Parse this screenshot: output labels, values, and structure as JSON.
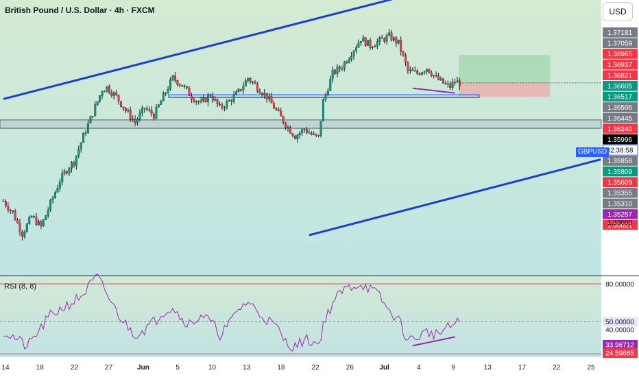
{
  "header": {
    "title": "British Pound / U.S. Dollar · 4h · FXCM",
    "currency_button": "USD",
    "symbol_tag": "GBPUSD"
  },
  "rsi": {
    "label": "RSI (8, 8)"
  },
  "colors": {
    "green_tag": "#089981",
    "red_tag": "#f23645",
    "gray_tag": "#787b86",
    "black_tag": "#000000",
    "purple_tag": "#9c27b0",
    "channel_line": "#1e3fc8",
    "candle_up": "#089981",
    "candle_down": "#f23645",
    "rsi_line": "#9c27b0",
    "divergence": "#9c27b0"
  },
  "chart_data": [
    {
      "type": "candlestick",
      "title": "British Pound / U.S. Dollar · 4h · FXCM",
      "x_tick_labels": [
        "14",
        "18",
        "22",
        "27",
        "Jun",
        "5",
        "10",
        "13",
        "18",
        "22",
        "26",
        "Jul",
        "4",
        "9",
        "13",
        "17",
        "22",
        "25"
      ],
      "y_tick_labels": [
        "1.33000"
      ],
      "ylim": [
        1.3185,
        1.3778
      ],
      "price_tags": [
        {
          "value": "1.37181",
          "style": "gray"
        },
        {
          "value": "1.37059",
          "style": "gray"
        },
        {
          "value": "1.36965",
          "style": "red"
        },
        {
          "value": "1.36937",
          "style": "red"
        },
        {
          "value": "1.36821",
          "style": "red"
        },
        {
          "value": "1.36605",
          "style": "green"
        },
        {
          "value": "1.36517",
          "style": "green"
        },
        {
          "value": "1.36506",
          "style": "gray"
        },
        {
          "value": "1.36445",
          "style": "gray"
        },
        {
          "value": "1.36340",
          "style": "red"
        },
        {
          "value": "1.35996",
          "style": "black"
        },
        {
          "value": "02:38:58",
          "style": "countdown"
        },
        {
          "value": "1.35858",
          "style": "gray"
        },
        {
          "value": "1.35809",
          "style": "green"
        },
        {
          "value": "1.35609",
          "style": "red"
        },
        {
          "value": "1.35355",
          "style": "gray"
        },
        {
          "value": "1.35310",
          "style": "gray"
        },
        {
          "value": "1.35257",
          "style": "purple"
        },
        {
          "value": "1.35021",
          "style": "red"
        }
      ],
      "last_price": 1.35996,
      "price_waypoints": [
        [
          0,
          1.3345
        ],
        [
          4,
          1.332
        ],
        [
          8,
          1.3275
        ],
        [
          12,
          1.3312
        ],
        [
          16,
          1.329
        ],
        [
          20,
          1.334
        ],
        [
          24,
          1.339
        ],
        [
          28,
          1.342
        ],
        [
          30,
          1.343
        ],
        [
          34,
          1.3485
        ],
        [
          38,
          1.3535
        ],
        [
          42,
          1.3585
        ],
        [
          44,
          1.359
        ],
        [
          48,
          1.357
        ],
        [
          52,
          1.354
        ],
        [
          56,
          1.3515
        ],
        [
          60,
          1.3545
        ],
        [
          64,
          1.353
        ],
        [
          68,
          1.357
        ],
        [
          72,
          1.361
        ],
        [
          76,
          1.3595
        ],
        [
          80,
          1.357
        ],
        [
          84,
          1.3555
        ],
        [
          88,
          1.3575
        ],
        [
          92,
          1.3545
        ],
        [
          96,
          1.356
        ],
        [
          100,
          1.358
        ],
        [
          104,
          1.361
        ],
        [
          108,
          1.359
        ],
        [
          112,
          1.357
        ],
        [
          116,
          1.354
        ],
        [
          120,
          1.351
        ],
        [
          124,
          1.3485
        ],
        [
          128,
          1.35
        ],
        [
          132,
          1.3485
        ],
        [
          134,
          1.3482
        ],
        [
          136,
          1.356
        ],
        [
          140,
          1.362
        ],
        [
          144,
          1.3635
        ],
        [
          148,
          1.3665
        ],
        [
          152,
          1.3695
        ],
        [
          156,
          1.368
        ],
        [
          160,
          1.369
        ],
        [
          164,
          1.37
        ],
        [
          168,
          1.3685
        ],
        [
          172,
          1.3625
        ],
        [
          176,
          1.362
        ],
        [
          180,
          1.3632
        ],
        [
          184,
          1.361
        ],
        [
          188,
          1.3595
        ],
        [
          190,
          1.3592
        ],
        [
          192,
          1.3602
        ],
        [
          194,
          1.36
        ]
      ],
      "channel": {
        "upper": [
          [
            0,
            1.3565
          ],
          [
            254,
            1.3895
          ]
        ],
        "lower": [
          [
            130,
            1.3272
          ],
          [
            254,
            1.3435
          ]
        ]
      },
      "zones": {
        "support_box": [
          1.3568,
          1.3574
        ],
        "lower_band": [
          1.3502,
          1.352
        ],
        "target_box": [
          1.36,
          1.366
        ],
        "stop_box": [
          1.357,
          1.36
        ]
      },
      "divergence_price": [
        [
          174,
          1.3588
        ],
        [
          192,
          1.3578
        ]
      ]
    },
    {
      "type": "line",
      "title": "RSI (8, 8)",
      "ylim": [
        22.0,
        86.0
      ],
      "levels": [
        80,
        50,
        24.59665
      ],
      "y_tick_labels": [
        "80.00000",
        "50.00000",
        "40.00000"
      ],
      "value_tags": [
        "50.00000",
        "33.96712",
        "24.59665"
      ],
      "rsi_waypoints": [
        [
          0,
          42
        ],
        [
          6,
          36
        ],
        [
          10,
          30
        ],
        [
          14,
          40
        ],
        [
          20,
          55
        ],
        [
          26,
          62
        ],
        [
          30,
          66
        ],
        [
          34,
          72
        ],
        [
          38,
          82
        ],
        [
          40,
          85
        ],
        [
          44,
          72
        ],
        [
          48,
          58
        ],
        [
          52,
          48
        ],
        [
          56,
          40
        ],
        [
          60,
          44
        ],
        [
          64,
          50
        ],
        [
          68,
          58
        ],
        [
          72,
          62
        ],
        [
          76,
          52
        ],
        [
          80,
          48
        ],
        [
          84,
          56
        ],
        [
          88,
          50
        ],
        [
          92,
          40
        ],
        [
          96,
          48
        ],
        [
          100,
          60
        ],
        [
          104,
          66
        ],
        [
          108,
          58
        ],
        [
          112,
          52
        ],
        [
          116,
          46
        ],
        [
          120,
          34
        ],
        [
          124,
          30
        ],
        [
          128,
          36
        ],
        [
          132,
          34
        ],
        [
          134,
          32
        ],
        [
          136,
          48
        ],
        [
          140,
          65
        ],
        [
          144,
          74
        ],
        [
          148,
          78
        ],
        [
          152,
          80
        ],
        [
          156,
          76
        ],
        [
          160,
          70
        ],
        [
          164,
          58
        ],
        [
          168,
          52
        ],
        [
          172,
          35
        ],
        [
          176,
          38
        ],
        [
          180,
          42
        ],
        [
          184,
          40
        ],
        [
          188,
          44
        ],
        [
          190,
          46
        ],
        [
          194,
          50
        ]
      ],
      "divergence_rsi": [
        [
          174,
          31
        ],
        [
          192,
          38
        ]
      ]
    }
  ]
}
